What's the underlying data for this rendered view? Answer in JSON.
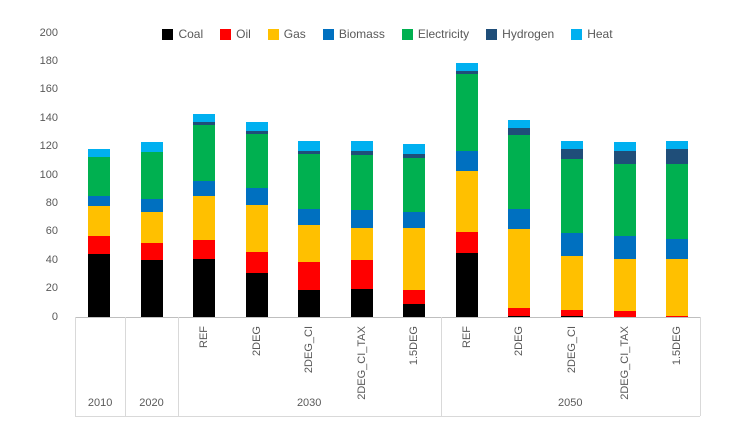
{
  "chart_data": {
    "type": "bar",
    "stacked": true,
    "title": "",
    "xlabel": "",
    "ylabel": "",
    "ylim": [
      0,
      200
    ],
    "yticks": [
      0,
      20,
      40,
      60,
      80,
      100,
      120,
      140,
      160,
      180,
      200
    ],
    "grid": false,
    "legend_position": "top",
    "legend": [
      "Coal",
      "Oil",
      "Gas",
      "Biomass",
      "Electricity",
      "Hydrogen",
      "Heat"
    ],
    "colors": [
      "#000000",
      "#ff0000",
      "#ffc000",
      "#0070c0",
      "#00b050",
      "#1f4e79",
      "#00b0f0"
    ],
    "series_order_note": "values arrays follow legend order, stacked bottom-to-top",
    "year_groups": [
      {
        "label": "2010",
        "scenarios": [
          ""
        ],
        "bars": [
          [
            44,
            13,
            21,
            7,
            28,
            0,
            5
          ]
        ]
      },
      {
        "label": "2020",
        "scenarios": [
          ""
        ],
        "bars": [
          [
            40,
            12,
            22,
            9,
            33,
            0,
            7
          ]
        ]
      },
      {
        "label": "2030",
        "scenarios": [
          "REF",
          "2DEG",
          "2DEG_CI",
          "2DEG_CI_TAX",
          "1.5DEG"
        ],
        "bars": [
          [
            41,
            13,
            31,
            11,
            39,
            2,
            6
          ],
          [
            31,
            15,
            33,
            12,
            38,
            2,
            6
          ],
          [
            19,
            20,
            26,
            11,
            39,
            2,
            7
          ],
          [
            20,
            20,
            23,
            12,
            39,
            3,
            7
          ],
          [
            9,
            10,
            44,
            11,
            38,
            3,
            7
          ]
        ]
      },
      {
        "label": "2050",
        "scenarios": [
          "REF",
          "2DEG",
          "2DEG_CI",
          "2DEG_CI_TAX",
          "1.5DEG"
        ],
        "bars": [
          [
            45,
            15,
            43,
            14,
            54,
            2,
            6
          ],
          [
            1,
            5,
            56,
            14,
            52,
            5,
            6
          ],
          [
            1,
            4,
            38,
            16,
            52,
            7,
            6
          ],
          [
            0,
            4,
            37,
            16,
            51,
            9,
            6
          ],
          [
            0,
            1,
            40,
            14,
            53,
            10,
            6
          ]
        ]
      }
    ]
  }
}
